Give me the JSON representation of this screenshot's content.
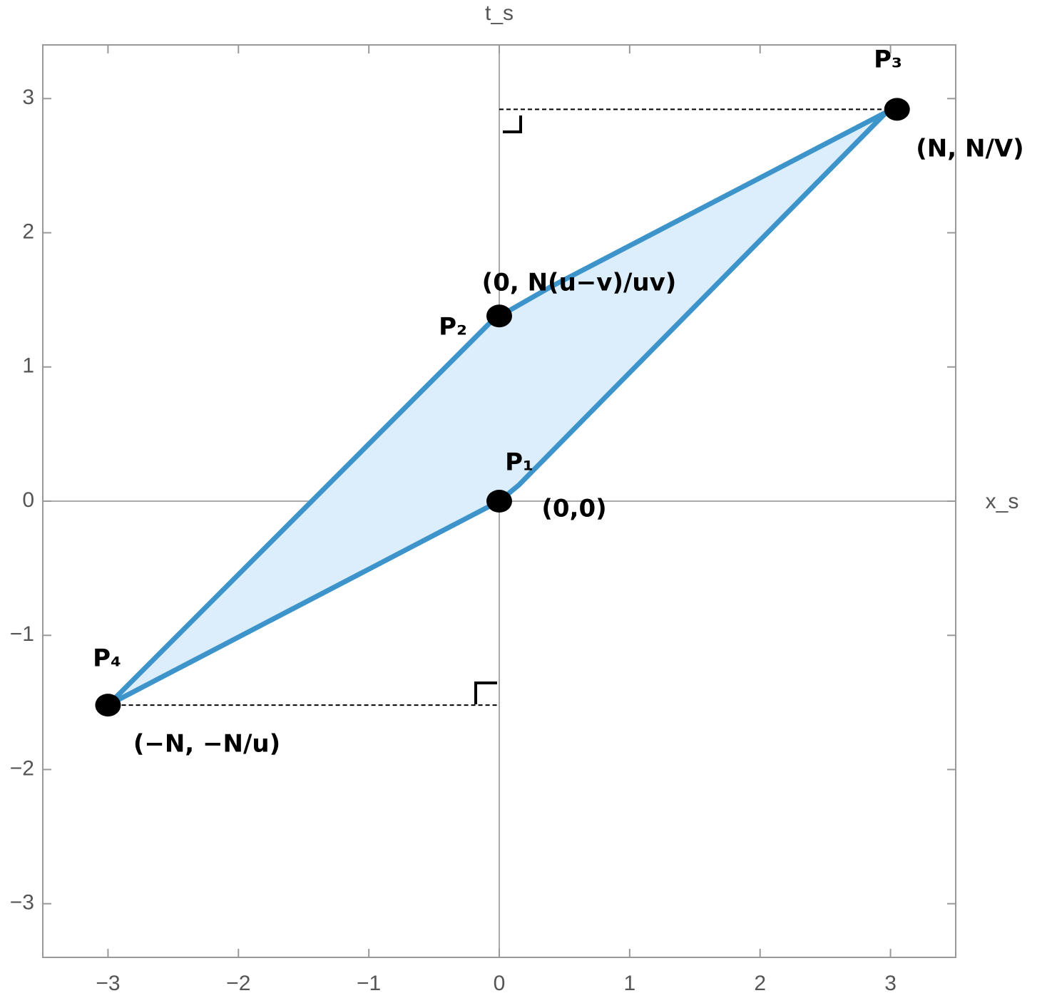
{
  "chart_data": {
    "type": "polygon",
    "xlabel": "x_s",
    "ylabel": "t_s",
    "xlim": [
      -3.5,
      3.5
    ],
    "ylim": [
      -3.4,
      3.4
    ],
    "xticks": [
      {
        "value": -3,
        "label": "−3"
      },
      {
        "value": -2,
        "label": "−2"
      },
      {
        "value": -1,
        "label": "−1"
      },
      0,
      1,
      2,
      3
    ],
    "yticks": [
      {
        "value": -3,
        "label": "−3"
      },
      {
        "value": -2,
        "label": "−2"
      },
      {
        "value": -1,
        "label": "−1"
      },
      0,
      1,
      2,
      3
    ],
    "region": {
      "x": [
        -3,
        -0.05,
        0.4,
        2.97,
        0.15,
        0
      ],
      "y": [
        -1.52,
        1.35,
        1.6,
        2.9,
        0.12,
        0
      ],
      "color": "#3d94cb",
      "fill": "#dcedfb"
    },
    "points": {
      "x": [
        0,
        0,
        3.05,
        -3
      ],
      "y": [
        0,
        1.38,
        2.92,
        -1.52
      ],
      "color": "#000000"
    },
    "guides": [
      {
        "x": [
          0,
          2.95
        ],
        "y": [
          2.92,
          2.92
        ]
      },
      {
        "x": [
          -2.95,
          0
        ],
        "y": [
          -1.52,
          -1.52
        ]
      }
    ],
    "annotations": [
      "P₃",
      "(N, N/V)",
      "(0, N(u−v)/uv)",
      "P₂",
      "P₁",
      "(0,0)",
      "P₄",
      "(−N, −N/u)"
    ]
  }
}
